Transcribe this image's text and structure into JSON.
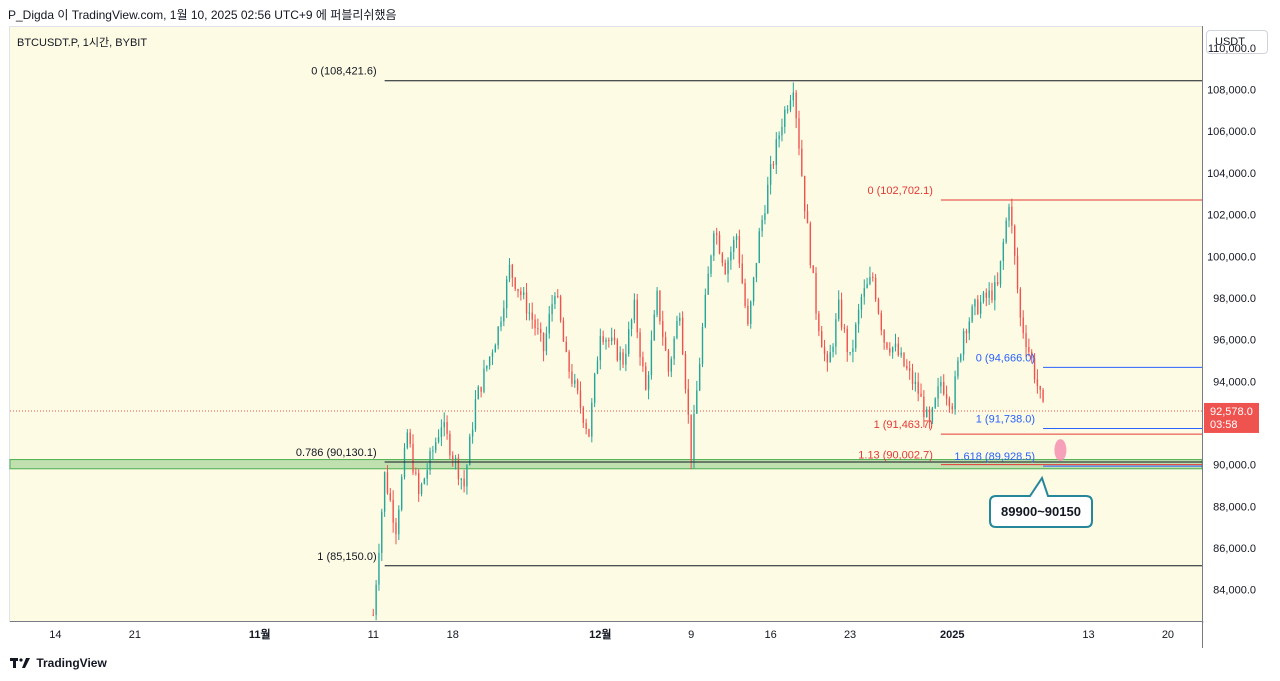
{
  "header": {
    "text": "P_Digda 이 TradingView.com, 1월 10, 2025 02:56 UTC+9 에 퍼블리쉬했음"
  },
  "symbol": {
    "text": "BTCUSDT.P, 1시간, BYBIT"
  },
  "y_axis": {
    "currency": "USDT"
  },
  "footer": {
    "brand": "TradingView"
  },
  "price_tag": {
    "value": "92,578.0",
    "countdown": "03:58"
  },
  "callout": {
    "text": "89900~90150"
  },
  "colors": {
    "bg": "#fdfbe3",
    "up": "#26a69a",
    "down": "#ef5350",
    "red_label": "#e53935",
    "blue_label": "#2962ff",
    "zone": "#4caf50"
  },
  "chart_data": {
    "type": "candlestick",
    "timeframe": "1시간",
    "ylim": [
      82500,
      111000
    ],
    "y_ticks": [
      84000,
      86000,
      88000,
      90000,
      92000,
      94000,
      96000,
      98000,
      100000,
      102000,
      104000,
      106000,
      108000,
      110000
    ],
    "y_tick_labels": [
      "84,000.0",
      "86,000.0",
      "88,000.0",
      "90,000.0",
      "92,000.0",
      "94,000.0",
      "96,000.0",
      "98,000.0",
      "100,000.0",
      "102,000.0",
      "104,000.0",
      "106,000.0",
      "108,000.0",
      "110,000.0"
    ],
    "x_tick_labels": [
      "14",
      "21",
      "11월",
      "11",
      "18",
      "12월",
      "9",
      "16",
      "23",
      "2025",
      "13",
      "20"
    ],
    "x_tick_dates": [
      "2024-10-14",
      "2024-10-21",
      "2024-11-01",
      "2024-11-11",
      "2024-11-18",
      "2024-12-01",
      "2024-12-09",
      "2024-12-16",
      "2024-12-23",
      "2025-01-01",
      "2025-01-13",
      "2025-01-20"
    ],
    "x_range": [
      "2024-10-10",
      "2025-01-23"
    ],
    "current_price": 92578.0,
    "price_path": [
      [
        "2024-11-11",
        82800
      ],
      [
        "2024-11-12",
        89500
      ],
      [
        "2024-11-13",
        87000
      ],
      [
        "2024-11-14",
        91500
      ],
      [
        "2024-11-15",
        88500
      ],
      [
        "2024-11-17",
        92000
      ],
      [
        "2024-11-19",
        89000
      ],
      [
        "2024-11-20",
        93000
      ],
      [
        "2024-11-22",
        96500
      ],
      [
        "2024-11-23",
        99400
      ],
      [
        "2024-11-25",
        97000
      ],
      [
        "2024-11-26",
        95500
      ],
      [
        "2024-11-27",
        98500
      ],
      [
        "2024-11-28",
        95000
      ],
      [
        "2024-11-30",
        91500
      ],
      [
        "2024-12-01",
        96500
      ],
      [
        "2024-12-03",
        95000
      ],
      [
        "2024-12-04",
        97500
      ],
      [
        "2024-12-05",
        93500
      ],
      [
        "2024-12-06",
        98000
      ],
      [
        "2024-12-07",
        94500
      ],
      [
        "2024-12-08",
        97500
      ],
      [
        "2024-12-09",
        90500
      ],
      [
        "2024-12-10",
        96500
      ],
      [
        "2024-12-11",
        101500
      ],
      [
        "2024-12-12",
        99500
      ],
      [
        "2024-12-13",
        101000
      ],
      [
        "2024-12-14",
        96500
      ],
      [
        "2024-12-15",
        101000
      ],
      [
        "2024-12-16",
        104000
      ],
      [
        "2024-12-17",
        106500
      ],
      [
        "2024-12-18",
        108300
      ],
      [
        "2024-12-19",
        102500
      ],
      [
        "2024-12-20",
        97500
      ],
      [
        "2024-12-21",
        94500
      ],
      [
        "2024-12-22",
        97500
      ],
      [
        "2024-12-23",
        95000
      ],
      [
        "2024-12-24",
        98000
      ],
      [
        "2024-12-25",
        99000
      ],
      [
        "2024-12-26",
        96000
      ],
      [
        "2024-12-27",
        95500
      ],
      [
        "2024-12-29",
        93500
      ],
      [
        "2024-12-30",
        91800
      ],
      [
        "2024-12-31",
        94000
      ],
      [
        "2025-01-01",
        93000
      ],
      [
        "2025-01-02",
        96500
      ],
      [
        "2025-01-03",
        97500
      ],
      [
        "2025-01-04",
        98000
      ],
      [
        "2025-01-05",
        98500
      ],
      [
        "2025-01-06",
        102700
      ],
      [
        "2025-01-07",
        97000
      ],
      [
        "2025-01-08",
        95000
      ],
      [
        "2025-01-09",
        92600
      ]
    ],
    "fib_retracements": [
      {
        "label": "0 (108,421.6)",
        "price": 108421.6,
        "color": "black",
        "from": "2024-11-12",
        "to": "2025-01-23"
      },
      {
        "label": "0.786 (90,130.1)",
        "price": 90130.1,
        "color": "black",
        "from": "2024-11-12",
        "to": "2025-01-23"
      },
      {
        "label": "1 (85,150.0)",
        "price": 85150.0,
        "color": "black",
        "from": "2024-11-12",
        "to": "2025-01-23"
      },
      {
        "label": "0 (102,702.1)",
        "price": 102702.1,
        "color": "red",
        "from": "2024-12-31",
        "to": "2025-01-23"
      },
      {
        "label": "1 (91,463.7)",
        "price": 91463.7,
        "color": "red",
        "from": "2024-12-31",
        "to": "2025-01-23"
      },
      {
        "label": "1.13 (90,002.7)",
        "price": 90002.7,
        "color": "red",
        "from": "2024-12-31",
        "to": "2025-01-23"
      },
      {
        "label": "0 (94,666.0)",
        "price": 94666.0,
        "color": "blue",
        "from": "2025-01-09",
        "to": "2025-01-23"
      },
      {
        "label": "1 (91,738.0)",
        "price": 91738.0,
        "color": "blue",
        "from": "2025-01-09",
        "to": "2025-01-23"
      },
      {
        "label": "1.618 (89,928.5)",
        "price": 89928.5,
        "color": "blue",
        "from": "2025-01-09",
        "to": "2025-01-23"
      }
    ],
    "support_zone": {
      "low": 89900,
      "high": 90150
    }
  }
}
